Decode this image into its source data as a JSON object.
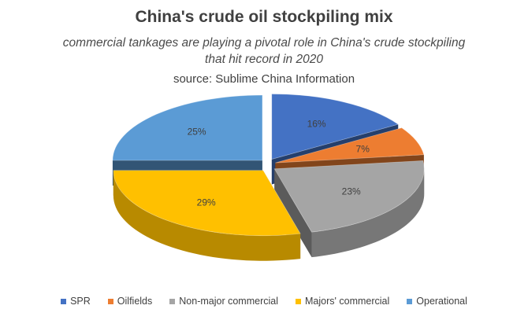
{
  "chart_data": {
    "type": "pie",
    "title": "China's crude oil stockpiling mix",
    "subtitle": "commercial tankages are playing a pivotal role in China's crude stockpiling that hit record in 2020",
    "source": "source: Sublime China Information",
    "categories": [
      "SPR",
      "Oilfields",
      "Non-major commercial",
      "Majors' commercial",
      "Operational"
    ],
    "values": [
      16,
      7,
      23,
      29,
      25
    ],
    "labels": [
      "16%",
      "7%",
      "23%",
      "29%",
      "25%"
    ],
    "colors": [
      "#4472c4",
      "#ed7d31",
      "#a5a5a5",
      "#ffc000",
      "#5b9bd5"
    ],
    "legend_position": "bottom",
    "style": "3d-exploded"
  }
}
